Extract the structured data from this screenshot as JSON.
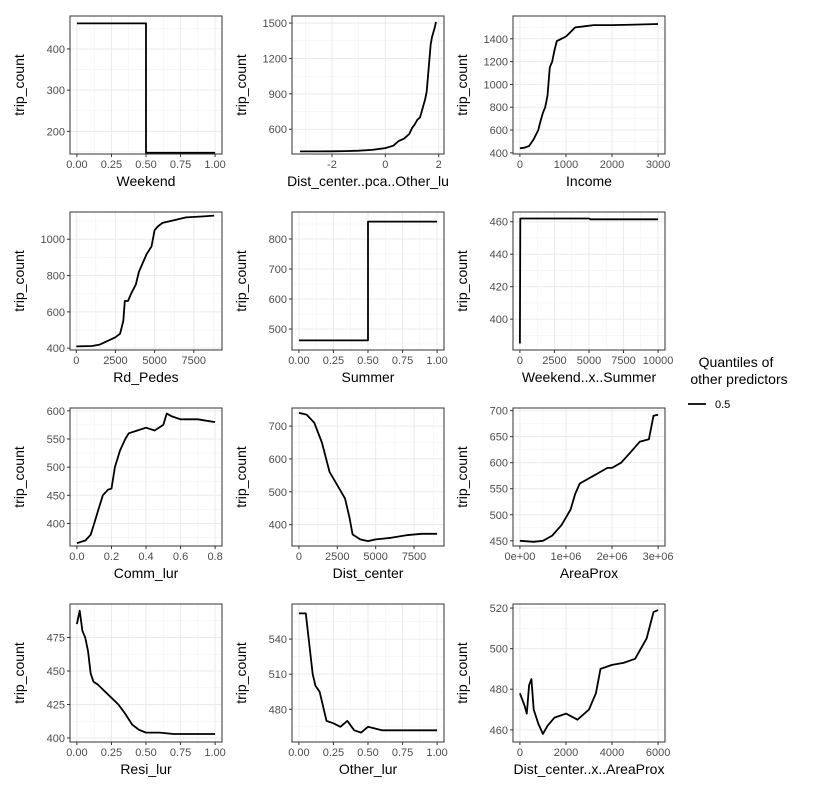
{
  "legend": {
    "title_line1": "Quantiles of",
    "title_line2": "other predictors",
    "label": "0.5",
    "color": "#000000"
  },
  "chart_data": [
    {
      "type": "line",
      "step": true,
      "xlabel": "Weekend",
      "ylabel": "trip_count",
      "xlim": [
        -0.05,
        1.05
      ],
      "ylim": [
        145,
        480
      ],
      "xticks": [
        0,
        0.25,
        0.5,
        0.75,
        1
      ],
      "xtick_labels": [
        "0.00",
        "0.25",
        "0.50",
        "0.75",
        "1.00"
      ],
      "yticks": [
        200,
        300,
        400
      ],
      "ytick_labels": [
        "200",
        "300",
        "400"
      ],
      "x": [
        0,
        0.5,
        0.5,
        1
      ],
      "y": [
        462,
        462,
        148,
        148
      ]
    },
    {
      "type": "line",
      "xlabel": "Dist_center..pca..Other_lu",
      "ylabel": "trip_count",
      "xlim": [
        -3.5,
        2.2
      ],
      "ylim": [
        390,
        1560
      ],
      "xticks": [
        -2,
        0,
        2
      ],
      "xtick_labels": [
        "-2",
        "0",
        "2"
      ],
      "yticks": [
        600,
        900,
        1200,
        1500
      ],
      "ytick_labels": [
        "600",
        "900",
        "1200",
        "1500"
      ],
      "x": [
        -3.2,
        -2.5,
        -2.0,
        -1.5,
        -1.0,
        -0.5,
        0,
        0.3,
        0.5,
        0.7,
        0.9,
        1.0,
        1.1,
        1.2,
        1.3,
        1.4,
        1.5,
        1.55,
        1.6,
        1.65,
        1.7,
        1.75,
        1.8,
        1.85,
        1.9
      ],
      "y": [
        412,
        412,
        413,
        415,
        418,
        425,
        440,
        460,
        500,
        520,
        560,
        610,
        640,
        680,
        700,
        780,
        860,
        920,
        1050,
        1180,
        1320,
        1380,
        1420,
        1460,
        1510
      ]
    },
    {
      "type": "line",
      "xlabel": "Income",
      "ylabel": "trip_count",
      "xlim": [
        -150,
        3150
      ],
      "ylim": [
        390,
        1600
      ],
      "xticks": [
        0,
        1000,
        2000,
        3000
      ],
      "xtick_labels": [
        "0",
        "1000",
        "2000",
        "3000"
      ],
      "yticks": [
        400,
        600,
        800,
        1000,
        1200,
        1400
      ],
      "ytick_labels": [
        "400",
        "600",
        "800",
        "1000",
        "1200",
        "1400"
      ],
      "x": [
        0,
        100,
        200,
        300,
        400,
        450,
        500,
        550,
        600,
        650,
        700,
        750,
        800,
        900,
        1000,
        1100,
        1200,
        1400,
        1600,
        2000,
        2500,
        3000
      ],
      "y": [
        440,
        445,
        460,
        520,
        600,
        680,
        750,
        800,
        900,
        1150,
        1200,
        1300,
        1380,
        1400,
        1420,
        1460,
        1500,
        1510,
        1520,
        1520,
        1525,
        1530
      ]
    },
    {
      "type": "line",
      "xlabel": "Rd_Pedes",
      "ylabel": "trip_count",
      "xlim": [
        -400,
        9300
      ],
      "ylim": [
        390,
        1150
      ],
      "xticks": [
        0,
        2500,
        5000,
        7500
      ],
      "xtick_labels": [
        "0",
        "2500",
        "5000",
        "7500"
      ],
      "yticks": [
        400,
        600,
        800,
        1000
      ],
      "ytick_labels": [
        "400",
        "600",
        "800",
        "1000"
      ],
      "x": [
        0,
        1000,
        1500,
        2000,
        2500,
        2800,
        3000,
        3100,
        3300,
        3500,
        3800,
        4000,
        4300,
        4500,
        4800,
        5000,
        5200,
        5500,
        6000,
        6500,
        7000,
        8000,
        8800
      ],
      "y": [
        410,
        412,
        420,
        440,
        460,
        480,
        550,
        660,
        660,
        700,
        750,
        820,
        880,
        920,
        960,
        1050,
        1070,
        1090,
        1100,
        1110,
        1120,
        1125,
        1130
      ]
    },
    {
      "type": "line",
      "step": true,
      "xlabel": "Summer",
      "ylabel": "trip_count",
      "xlim": [
        -0.05,
        1.05
      ],
      "ylim": [
        430,
        890
      ],
      "xticks": [
        0,
        0.25,
        0.5,
        0.75,
        1
      ],
      "xtick_labels": [
        "0.00",
        "0.25",
        "0.50",
        "0.75",
        "1.00"
      ],
      "yticks": [
        500,
        600,
        700,
        800
      ],
      "ytick_labels": [
        "500",
        "600",
        "700",
        "800"
      ],
      "x": [
        0,
        0.5,
        0.5,
        1
      ],
      "y": [
        462,
        462,
        858,
        858
      ]
    },
    {
      "type": "line",
      "xlabel": "Weekend..x..Summer",
      "ylabel": "trip_count",
      "xlim": [
        -500,
        10500
      ],
      "ylim": [
        381,
        466
      ],
      "xticks": [
        0,
        2500,
        5000,
        7500,
        10000
      ],
      "xtick_labels": [
        "0",
        "2500",
        "5000",
        "7500",
        "10000"
      ],
      "yticks": [
        400,
        420,
        440,
        460
      ],
      "ytick_labels": [
        "400",
        "420",
        "440",
        "460"
      ],
      "x": [
        0,
        30,
        100,
        5000,
        5100,
        10000
      ],
      "y": [
        385,
        462,
        462,
        462,
        461.5,
        461.5
      ]
    },
    {
      "type": "line",
      "xlabel": "Comm_lur",
      "ylabel": "trip_count",
      "xlim": [
        -0.04,
        0.84
      ],
      "ylim": [
        360,
        605
      ],
      "xticks": [
        0,
        0.2,
        0.4,
        0.6,
        0.8
      ],
      "xtick_labels": [
        "0.0",
        "0.2",
        "0.4",
        "0.6",
        "0.8"
      ],
      "yticks": [
        400,
        450,
        500,
        550,
        600
      ],
      "ytick_labels": [
        "400",
        "450",
        "500",
        "550",
        "600"
      ],
      "x": [
        0,
        0.05,
        0.08,
        0.1,
        0.12,
        0.15,
        0.18,
        0.2,
        0.22,
        0.25,
        0.28,
        0.3,
        0.35,
        0.4,
        0.45,
        0.5,
        0.52,
        0.55,
        0.6,
        0.7,
        0.8
      ],
      "y": [
        365,
        370,
        380,
        400,
        420,
        450,
        460,
        462,
        500,
        530,
        550,
        560,
        565,
        570,
        565,
        575,
        595,
        590,
        585,
        585,
        580
      ]
    },
    {
      "type": "line",
      "xlabel": "Dist_center",
      "ylabel": "trip_count",
      "xlim": [
        -450,
        9450
      ],
      "ylim": [
        335,
        755
      ],
      "xticks": [
        0,
        2500,
        5000,
        7500
      ],
      "xtick_labels": [
        "0",
        "2500",
        "5000",
        "7500"
      ],
      "yticks": [
        400,
        500,
        600,
        700
      ],
      "ytick_labels": [
        "400",
        "500",
        "600",
        "700"
      ],
      "x": [
        0,
        500,
        1000,
        1500,
        2000,
        2500,
        3000,
        3300,
        3500,
        4000,
        4500,
        5000,
        6000,
        7000,
        8000,
        9000
      ],
      "y": [
        740,
        735,
        710,
        650,
        560,
        520,
        480,
        420,
        370,
        355,
        350,
        355,
        360,
        368,
        372,
        372
      ]
    },
    {
      "type": "line",
      "xlabel": "AreaProx",
      "ylabel": "trip_count",
      "xlim": [
        -150000,
        3150000
      ],
      "ylim": [
        440,
        705
      ],
      "xticks": [
        0,
        1000000,
        2000000,
        3000000
      ],
      "xtick_labels": [
        "0e+00",
        "1e+06",
        "2e+06",
        "3e+06"
      ],
      "yticks": [
        450,
        500,
        550,
        600,
        650,
        700
      ],
      "ytick_labels": [
        "450",
        "500",
        "550",
        "600",
        "650",
        "700"
      ],
      "x": [
        0,
        300000,
        500000,
        700000,
        900000,
        1000000,
        1100000,
        1200000,
        1300000,
        1500000,
        1700000,
        1900000,
        2000000,
        2200000,
        2400000,
        2600000,
        2800000,
        2900000,
        3000000
      ],
      "y": [
        450,
        448,
        450,
        460,
        480,
        495,
        510,
        540,
        560,
        570,
        580,
        590,
        590,
        600,
        620,
        640,
        645,
        690,
        692
      ]
    },
    {
      "type": "line",
      "xlabel": "Resi_lur",
      "ylabel": "trip_count",
      "xlim": [
        -0.05,
        1.05
      ],
      "ylim": [
        397,
        500
      ],
      "xticks": [
        0,
        0.25,
        0.5,
        0.75,
        1
      ],
      "xtick_labels": [
        "0.00",
        "0.25",
        "0.50",
        "0.75",
        "1.00"
      ],
      "yticks": [
        400,
        425,
        450,
        475
      ],
      "ytick_labels": [
        "400",
        "425",
        "450",
        "475"
      ],
      "x": [
        0,
        0.02,
        0.04,
        0.06,
        0.08,
        0.1,
        0.12,
        0.15,
        0.2,
        0.25,
        0.3,
        0.35,
        0.4,
        0.45,
        0.5,
        0.6,
        0.7,
        0.8,
        0.9,
        1.0
      ],
      "y": [
        485,
        495,
        480,
        475,
        465,
        448,
        442,
        440,
        435,
        430,
        425,
        418,
        410,
        406,
        404,
        404,
        403,
        403,
        403,
        403
      ]
    },
    {
      "type": "line",
      "xlabel": "Other_lur",
      "ylabel": "trip_count",
      "xlim": [
        -0.05,
        1.05
      ],
      "ylim": [
        452,
        570
      ],
      "xticks": [
        0,
        0.25,
        0.5,
        0.75,
        1
      ],
      "xtick_labels": [
        "0.00",
        "0.25",
        "0.50",
        "0.75",
        "1.00"
      ],
      "yticks": [
        480,
        510,
        540
      ],
      "ytick_labels": [
        "480",
        "510",
        "540"
      ],
      "x": [
        0,
        0.05,
        0.1,
        0.12,
        0.15,
        0.18,
        0.2,
        0.25,
        0.3,
        0.35,
        0.4,
        0.45,
        0.5,
        0.6,
        0.7,
        0.8,
        0.9,
        1.0
      ],
      "y": [
        562,
        562,
        510,
        500,
        495,
        480,
        470,
        468,
        465,
        470,
        462,
        460,
        465,
        462,
        462,
        462,
        462,
        462
      ]
    },
    {
      "type": "line",
      "xlabel": "Dist_center..x..AreaProx",
      "ylabel": "trip_count",
      "xlim": [
        -300,
        6300
      ],
      "ylim": [
        454,
        522
      ],
      "xticks": [
        0,
        2000,
        4000,
        6000
      ],
      "xtick_labels": [
        "0",
        "2000",
        "4000",
        "6000"
      ],
      "yticks": [
        460,
        480,
        500,
        520
      ],
      "ytick_labels": [
        "460",
        "480",
        "500",
        "520"
      ],
      "x": [
        0,
        200,
        300,
        400,
        500,
        600,
        800,
        1000,
        1200,
        1500,
        2000,
        2500,
        3000,
        3300,
        3500,
        4000,
        4500,
        5000,
        5500,
        5800,
        6000
      ],
      "y": [
        478,
        472,
        468,
        482,
        485,
        470,
        463,
        458,
        462,
        466,
        468,
        465,
        470,
        478,
        490,
        492,
        493,
        495,
        505,
        518,
        519
      ]
    }
  ]
}
